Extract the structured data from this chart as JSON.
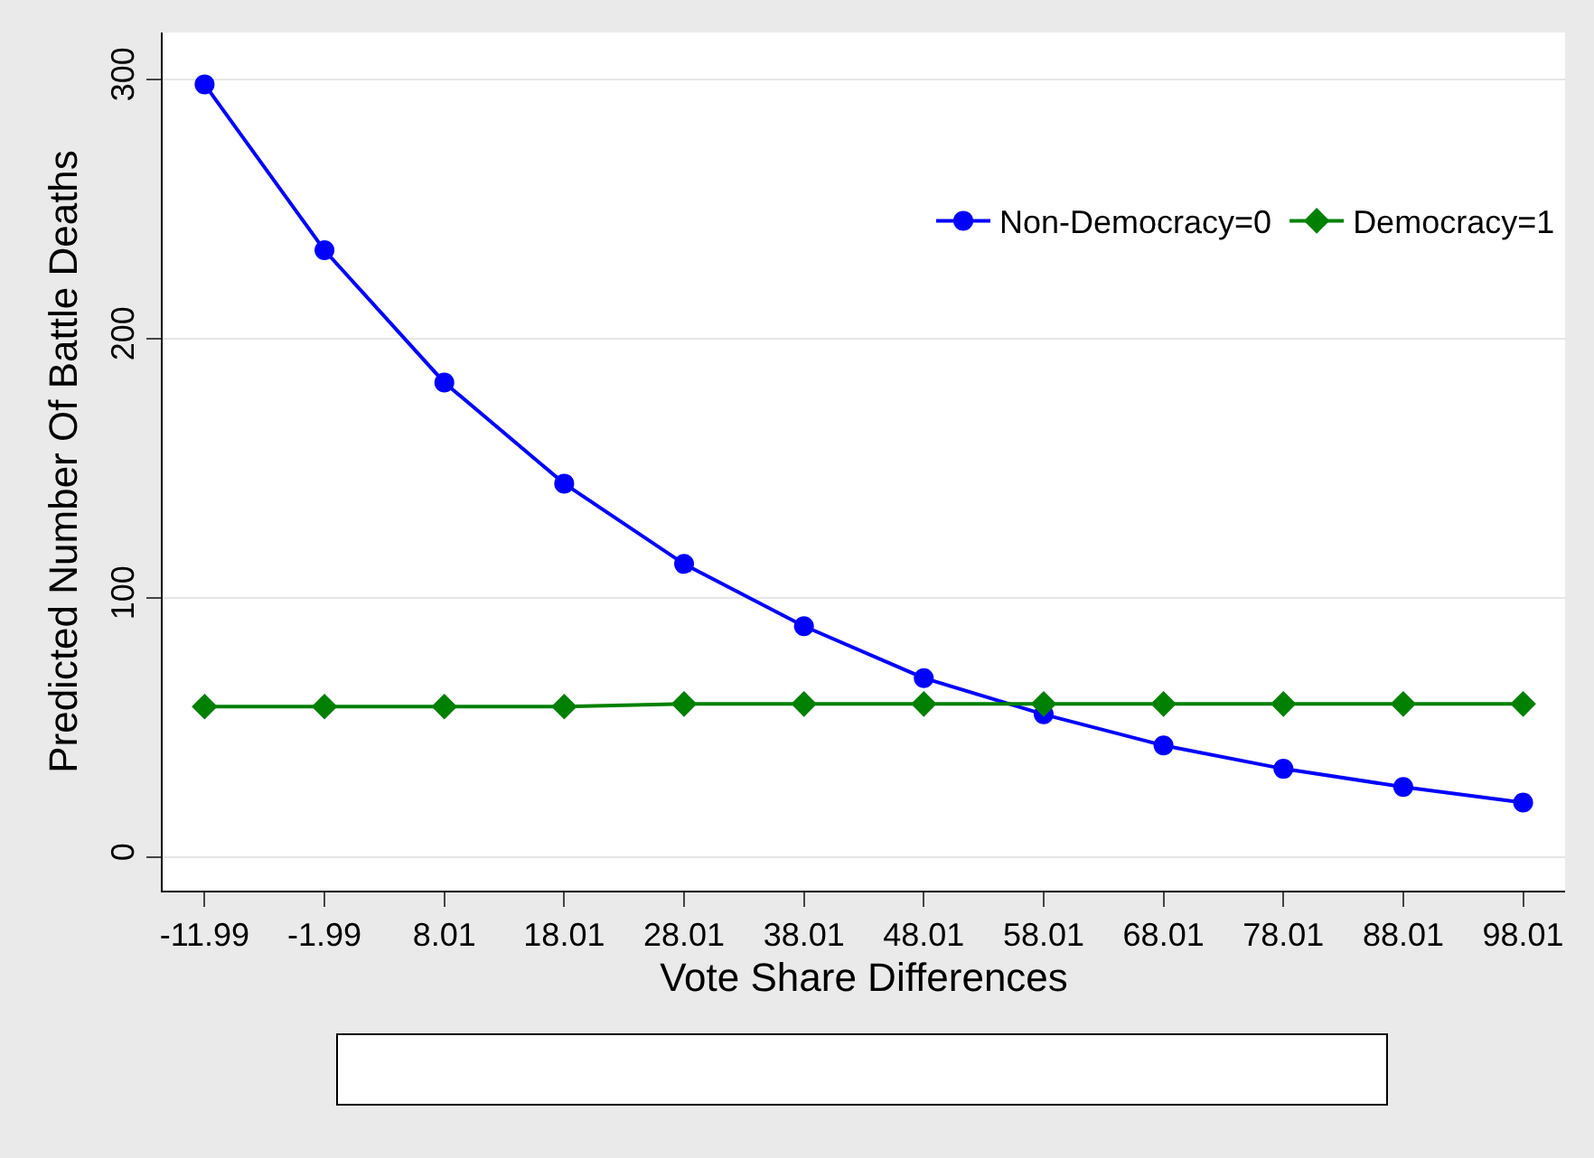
{
  "chart_data": {
    "type": "line",
    "xlabel": "Vote Share Differences",
    "ylabel": "Predicted Number Of Battle Deaths",
    "categories": [
      "-11.99",
      "-1.99",
      "8.01",
      "18.01",
      "28.01",
      "38.01",
      "48.01",
      "58.01",
      "68.01",
      "78.01",
      "88.01",
      "98.01"
    ],
    "series": [
      {
        "name": "Non-Democracy=0",
        "color": "#0000ff",
        "marker": "circle",
        "values": [
          298,
          234,
          183,
          144,
          113,
          89,
          69,
          55,
          43,
          34,
          27,
          21
        ]
      },
      {
        "name": "Democracy=1",
        "color": "#008000",
        "marker": "diamond",
        "values": [
          58,
          58,
          58,
          58,
          59,
          59,
          59,
          59,
          59,
          59,
          59,
          59
        ]
      }
    ],
    "ylim": [
      -13,
      318
    ],
    "yticks": [
      0,
      100,
      200,
      300
    ],
    "grid": "y",
    "legend": "top right",
    "line_style": "solid"
  }
}
